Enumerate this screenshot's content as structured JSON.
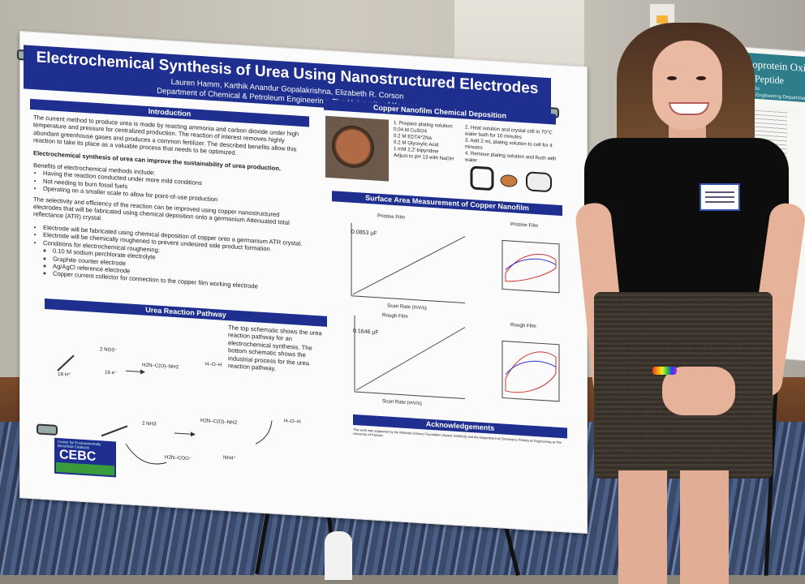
{
  "poster": {
    "title": "Electrochemical Synthesis of Urea Using Nanostructured Electrodes",
    "authors": "Lauren Hamm, Karthik Anandur Gopalakrishna, Elizabeth R. Corson",
    "affiliation": "Department of Chemical & Petroleum Engineering, The University of Kansas",
    "introduction": {
      "heading": "Introduction",
      "para1": "The current method to produce urea is made by reacting ammonia and carbon dioxide under high temperature and pressure for centralized production. The reaction of interest removes highly abundant greenhouse gases and produces a common fertilizer. The described benefits allow this reaction to take its place as a valuable process that needs to be optimized.",
      "emphasis": "Electrochemical synthesis of urea can improve the sustainability of urea production.",
      "benefits_intro": "Benefits of electrochemical methods include:",
      "benefits": [
        "Having the reaction conducted under more mild conditions",
        "Not needing to burn fossil fuels",
        "Operating on a smaller scale to allow for point-of-use production"
      ],
      "para2": "The selectivity and efficiency of the reaction can be improved using copper nanostructured electrodes that will be fabricated using chemical deposition onto a germanium Attenuated total reflectance (ATR) crystal.",
      "bullets": [
        "Electrode will be fabricated using chemical deposition of copper onto a germanium ATR crystal.",
        "Electrode will be chemically roughened to prevent undesired side product formation",
        "Conditions for electrochemical roughening:"
      ],
      "conditions": [
        "0.10 M sodium perchlorate electrolyte",
        "Graphite counter electrode",
        "Ag/AgCl reference electrode",
        "Copper current collector for connection to the copper film working electrode"
      ]
    },
    "pathway": {
      "heading": "Urea Reaction Pathway",
      "text": "The top schematic shows the urea reaction pathway for an electrochemical synthesis. The bottom schematic shows the industrial process for the urea reaction pathway.",
      "labels": {
        "no3": "2 NO3⁻",
        "h": "18 H⁺",
        "e": "16 e⁻",
        "nh3": "2 NH3",
        "urea": "H2N–C(O)–NH2",
        "water": "H–O–H",
        "carbamate": "H2N–COO⁻",
        "nh4": "NH4⁺"
      }
    },
    "deposition": {
      "heading": "Copper Nanofilm Chemical Deposition",
      "steps_left": [
        "1. Prepare plating solution:",
        "0.04 M CuSO4",
        "0.2 M EDTA*2Na",
        "0.2 M Glyoxylic Acid",
        "1 mM 2,2'-bipyridine",
        "Adjust to pH 13 with NaOH"
      ],
      "steps_right": [
        "2. Heat solution and crystal cell in 70°C",
        "water bath for 10 minutes",
        "3. Add 2 mL plating solution to cell for 4",
        "minutes",
        "4. Remove plating solution and flush with",
        "water"
      ]
    },
    "surface_area": {
      "heading": "Surface Area Measurement of Copper Nanofilm",
      "pristine_title": "Pristine Film",
      "pristine_value": "0.0853 µF",
      "rough_title": "Rough Film",
      "rough_value": "0.1646 µF",
      "xlabel": "Scan Rate (mV/s)",
      "ylabel": "Charging Current (µA)"
    },
    "acknowledgements": {
      "heading": "Acknowledgements",
      "text": "This work was supported by the National Science Foundation (Award 2044819) and the Department of Chemical & Petroleum Engineering at The University of Kansas."
    },
    "logo": {
      "text": "CEBC",
      "sub": "Center for Environmentally Beneficial Catalysis"
    }
  },
  "right_poster": {
    "title": "Flavoprotein Oxid",
    "subtitle": "Peptide",
    "text1": "Gabby LeDo",
    "text2": "Petroleum Engineering Department, Univ",
    "text3": "Research, University of Kansa"
  },
  "colors": {
    "poster_blue": "#1e2f8f",
    "right_poster_teal": "#2e7d8a"
  }
}
